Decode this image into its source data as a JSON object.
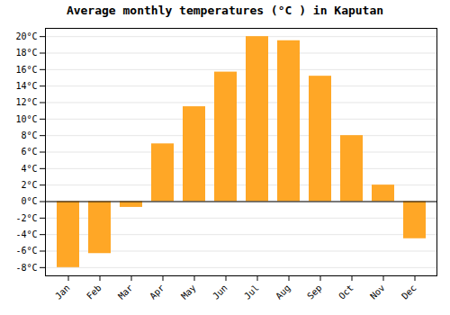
{
  "chart_data": {
    "type": "bar",
    "title": "Average monthly temperatures (°C ) in Kaputan",
    "categories": [
      "Jan",
      "Feb",
      "Mar",
      "Apr",
      "May",
      "Jun",
      "Jul",
      "Aug",
      "Sep",
      "Oct",
      "Nov",
      "Dec"
    ],
    "values": [
      -8.0,
      -6.3,
      -0.7,
      7.0,
      11.5,
      15.7,
      20.0,
      19.5,
      15.2,
      8.0,
      2.0,
      -4.5
    ],
    "color": "#FFA726",
    "ylim": [
      -9,
      21
    ],
    "yticks": [
      {
        "value": -8,
        "label": "-8°C"
      },
      {
        "value": -6,
        "label": "-6°C"
      },
      {
        "value": -4,
        "label": "-4°C"
      },
      {
        "value": -2,
        "label": "-2°C"
      },
      {
        "value": 0,
        "label": "0°C"
      },
      {
        "value": 2,
        "label": "2°C"
      },
      {
        "value": 4,
        "label": "4°C"
      },
      {
        "value": 6,
        "label": "6°C"
      },
      {
        "value": 8,
        "label": "8°C"
      },
      {
        "value": 10,
        "label": "10°C"
      },
      {
        "value": 12,
        "label": "12°C"
      },
      {
        "value": 14,
        "label": "14°C"
      },
      {
        "value": 16,
        "label": "16°C"
      },
      {
        "value": 18,
        "label": "18°C"
      },
      {
        "value": 20,
        "label": "20°C"
      }
    ],
    "grid": true
  }
}
